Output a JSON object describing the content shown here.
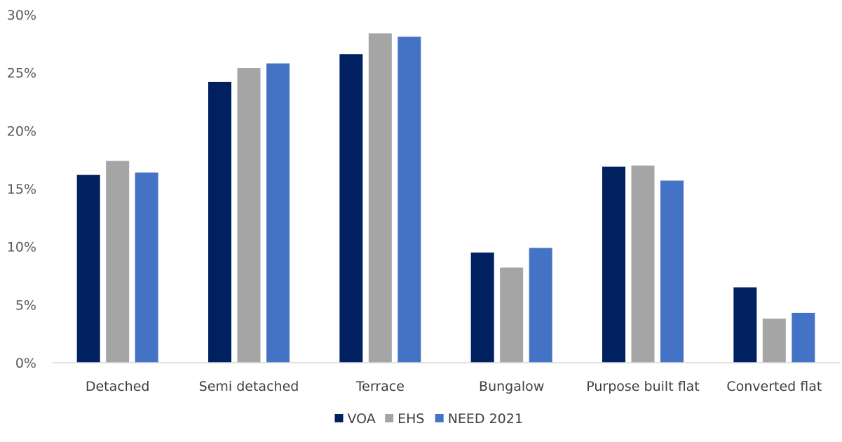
{
  "chart_data": {
    "type": "bar",
    "title": "",
    "xlabel": "",
    "ylabel": "",
    "categories": [
      "Detached",
      "Semi detached",
      "Terrace",
      "Bungalow",
      "Purpose built flat",
      "Converted flat"
    ],
    "series": [
      {
        "name": "VOA",
        "color": "#002060",
        "values": [
          16.2,
          24.2,
          26.6,
          9.5,
          16.9,
          6.5
        ]
      },
      {
        "name": "EHS",
        "color": "#A5A5A5",
        "values": [
          17.4,
          25.4,
          28.4,
          8.2,
          17.0,
          3.8
        ]
      },
      {
        "name": "NEED 2021",
        "color": "#4472C4",
        "values": [
          16.4,
          25.8,
          28.1,
          9.9,
          15.7,
          4.3
        ]
      }
    ],
    "ylim": [
      0,
      30
    ],
    "yticks": [
      "0%",
      "5%",
      "10%",
      "15%",
      "20%",
      "25%",
      "30%"
    ],
    "grid": false,
    "legend_position": "bottom"
  }
}
